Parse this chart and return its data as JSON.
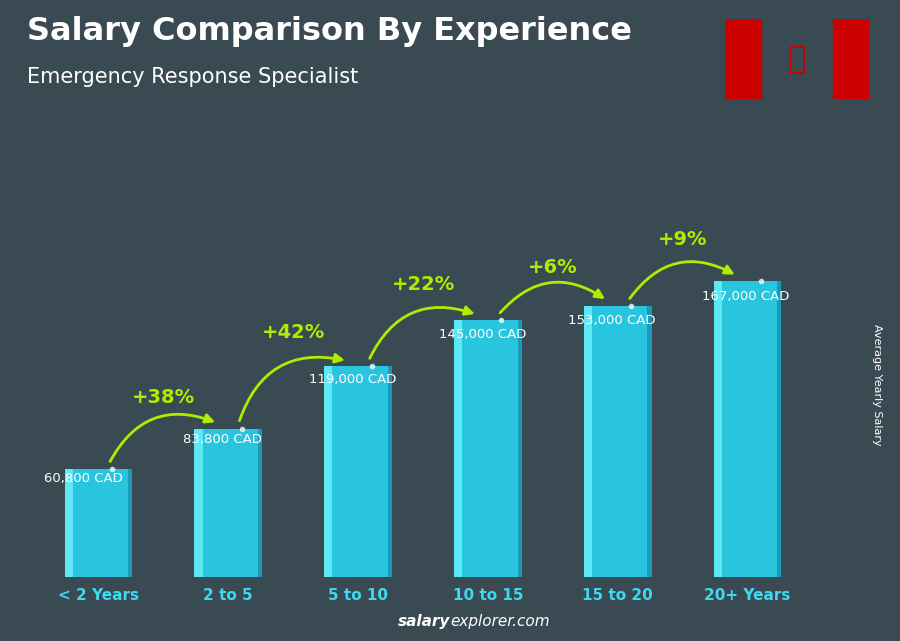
{
  "title": "Salary Comparison By Experience",
  "subtitle": "Emergency Response Specialist",
  "categories": [
    "< 2 Years",
    "2 to 5",
    "5 to 10",
    "10 to 15",
    "15 to 20",
    "20+ Years"
  ],
  "values": [
    60800,
    83800,
    119000,
    145000,
    153000,
    167000
  ],
  "value_labels": [
    "60,800 CAD",
    "83,800 CAD",
    "119,000 CAD",
    "145,000 CAD",
    "153,000 CAD",
    "167,000 CAD"
  ],
  "pct_labels": [
    "+38%",
    "+42%",
    "+22%",
    "+6%",
    "+9%"
  ],
  "bar_color_main": "#29c4de",
  "bar_color_highlight": "#5de8f5",
  "bar_color_dark": "#1a9ab8",
  "bg_color": "#3a4a52",
  "text_white": "#ffffff",
  "text_cyan": "#40d8f0",
  "text_green": "#aaee00",
  "ylabel": "Average Yearly Salary",
  "footer_plain": "explorer.com",
  "footer_bold": "salary",
  "ylim": [
    0,
    210000
  ],
  "bar_width": 0.52
}
